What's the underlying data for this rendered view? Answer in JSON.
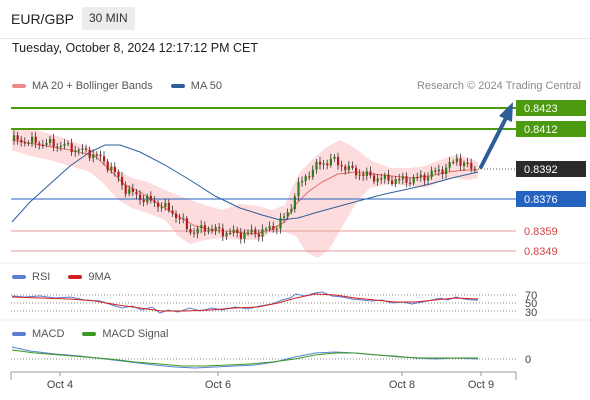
{
  "header": {
    "pair": "EUR/GBP",
    "timeframe": "30 MIN",
    "datetime": "Tuesday, October 8, 2024 12:17:12 PM CET"
  },
  "legend": {
    "main": [
      {
        "label": "MA 20 + Bollinger Bands",
        "color": "#f08a8a"
      },
      {
        "label": "MA 50",
        "color": "#2f5d9a"
      }
    ],
    "rsi": [
      {
        "label": "RSI",
        "color": "#5b7fd6"
      },
      {
        "label": "9MA",
        "color": "#d11f1f"
      }
    ],
    "macd": [
      {
        "label": "MACD",
        "color": "#5b7fd6"
      },
      {
        "label": "MACD Signal",
        "color": "#3a9a1e"
      }
    ]
  },
  "credit": "Research © 2024 Trading Central",
  "levels": [
    {
      "value": "0.8423",
      "style": "resistance",
      "color": "#4c9a10"
    },
    {
      "value": "0.8412",
      "style": "resistance",
      "color": "#4c9a10"
    },
    {
      "value": "0.8392",
      "style": "current",
      "color": "#2b2b2b"
    },
    {
      "value": "0.8376",
      "style": "pivot",
      "color": "#2563c0"
    },
    {
      "value": "0.8359",
      "style": "support",
      "color": "#d44444"
    },
    {
      "value": "0.8349",
      "style": "support",
      "color": "#d44444"
    }
  ],
  "rsi_levels": [
    "70",
    "50",
    "30"
  ],
  "macd_levels": [
    "0"
  ],
  "x_axis": [
    "Oct 4",
    "Oct 6",
    "Oct 8",
    "Oct 9"
  ]
}
